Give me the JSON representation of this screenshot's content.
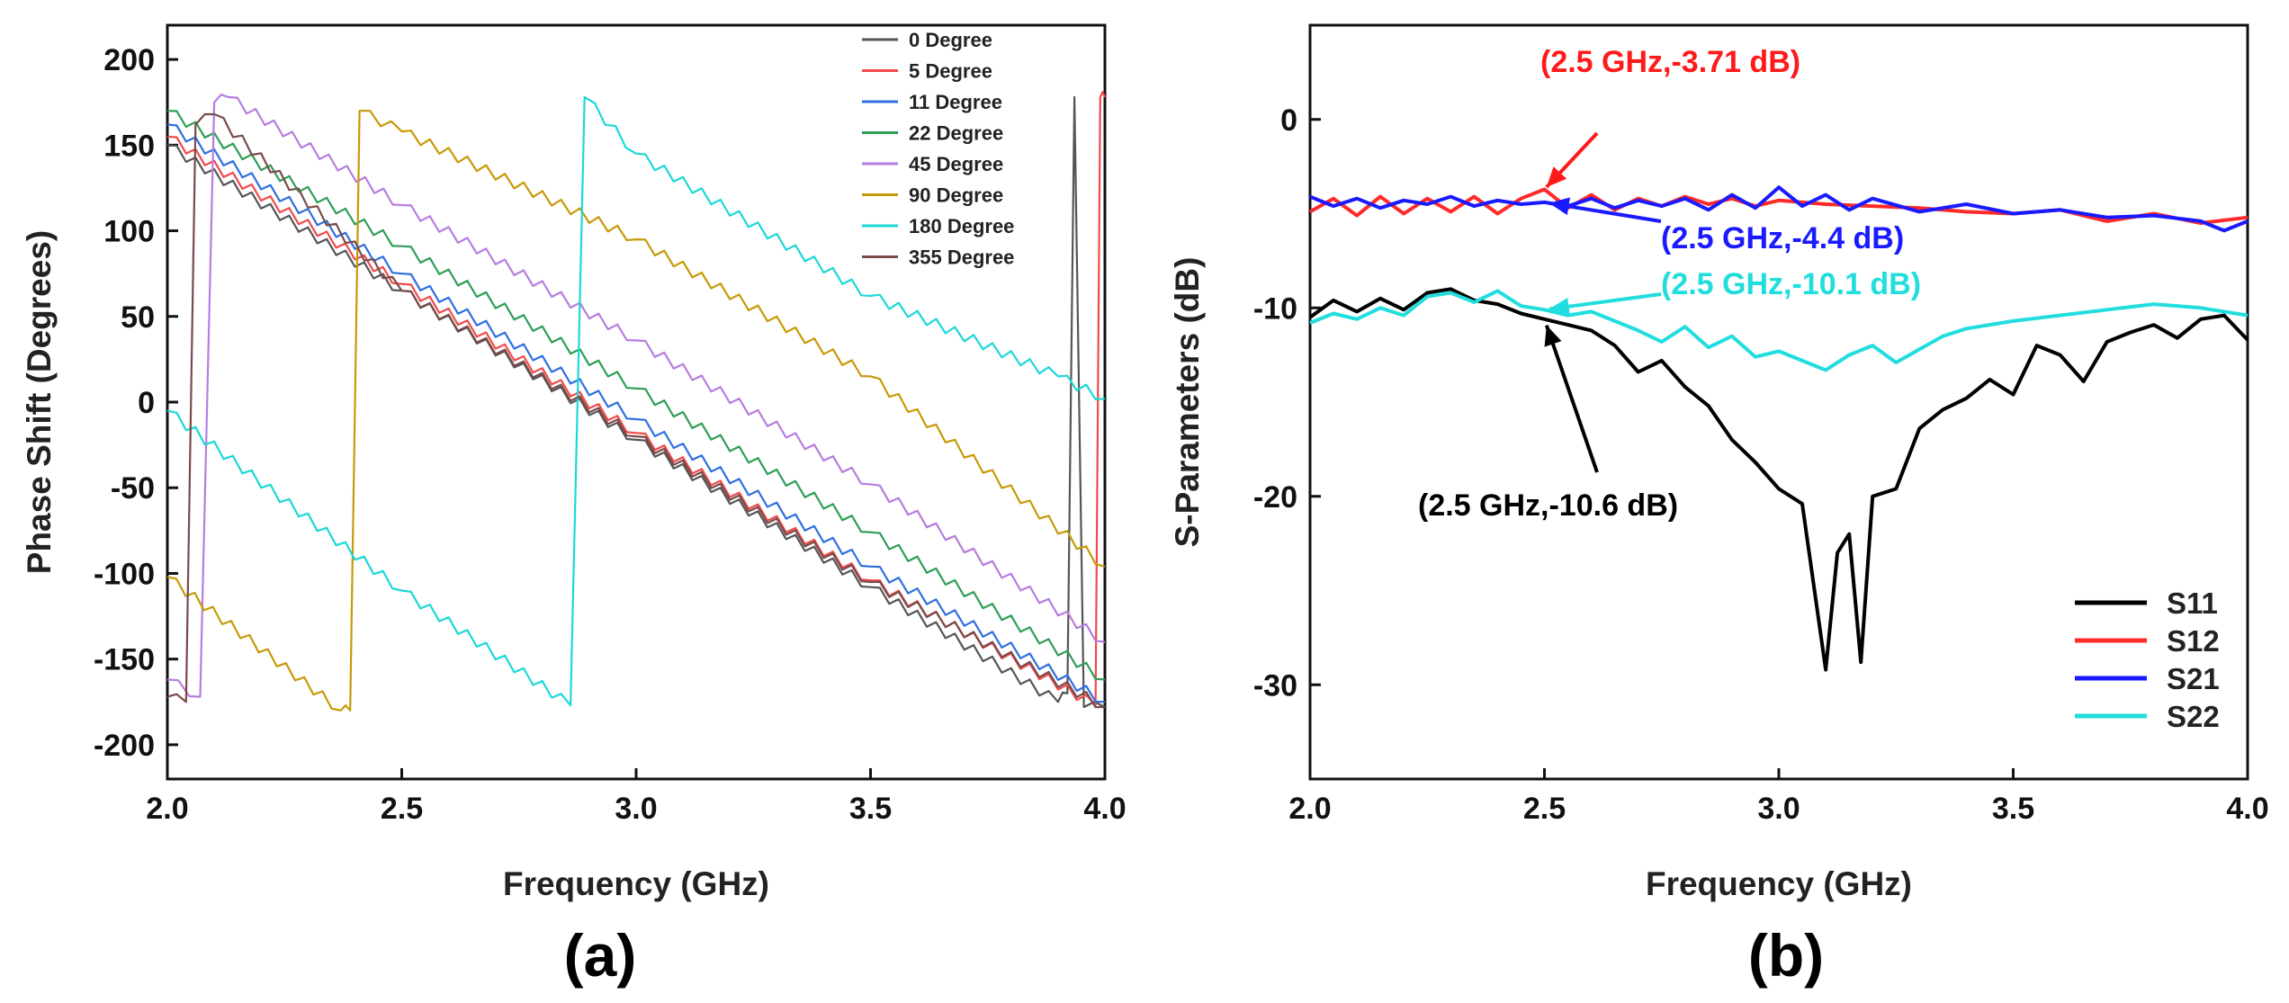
{
  "chart_data": [
    {
      "type": "line",
      "panel_label": "(a)",
      "xlabel": "Frequency (GHz)",
      "ylabel": "Phase Shift (Degrees)",
      "xlim": [
        2.0,
        4.0
      ],
      "ylim": [
        -220,
        220
      ],
      "xticks": [
        "2.0",
        "2.5",
        "3.0",
        "3.5",
        "4.0"
      ],
      "yticks": [
        "200",
        "150",
        "100",
        "50",
        "0",
        "-50",
        "-100",
        "-150",
        "-200"
      ],
      "legend_position": "top-right",
      "grid": false,
      "series": [
        {
          "name": "0 Degree",
          "color": "#555555",
          "points": [
            [
              2.0,
              150
            ],
            [
              2.5,
              65
            ],
            [
              3.0,
              -22
            ],
            [
              3.5,
              -108
            ],
            [
              3.9,
              -175
            ],
            [
              3.92,
              -170
            ],
            [
              3.935,
              178
            ],
            [
              3.955,
              -178
            ],
            [
              4.0,
              -178
            ]
          ]
        },
        {
          "name": "5 Degree",
          "color": "#f04a4a",
          "points": [
            [
              2.0,
              155
            ],
            [
              2.5,
              69
            ],
            [
              3.0,
              -18
            ],
            [
              3.5,
              -104
            ],
            [
              3.98,
              -177
            ],
            [
              3.99,
              178
            ],
            [
              4.0,
              178
            ]
          ]
        },
        {
          "name": "11 Degree",
          "color": "#2f6fe0",
          "points": [
            [
              2.0,
              162
            ],
            [
              2.5,
              75
            ],
            [
              3.0,
              -10
            ],
            [
              3.5,
              -96
            ],
            [
              4.0,
              -175
            ]
          ]
        },
        {
          "name": "22 Degree",
          "color": "#2e9e56",
          "points": [
            [
              2.0,
              170
            ],
            [
              2.5,
              91
            ],
            [
              3.0,
              8
            ],
            [
              3.5,
              -76
            ],
            [
              4.0,
              -162
            ]
          ]
        },
        {
          "name": "45 Degree",
          "color": "#b77de0",
          "points": [
            [
              2.0,
              -162
            ],
            [
              2.07,
              -172
            ],
            [
              2.1,
              175
            ],
            [
              2.13,
              178
            ],
            [
              2.5,
              115
            ],
            [
              3.0,
              36
            ],
            [
              3.5,
              -48
            ],
            [
              4.0,
              -140
            ]
          ]
        },
        {
          "name": "90 Degree",
          "color": "#c79a08",
          "points": [
            [
              2.0,
              -102
            ],
            [
              2.37,
              -180
            ],
            [
              2.39,
              -180
            ],
            [
              2.41,
              170
            ],
            [
              2.5,
              158
            ],
            [
              3.0,
              95
            ],
            [
              3.5,
              15
            ],
            [
              4.0,
              -96
            ]
          ]
        },
        {
          "name": "180 Degree",
          "color": "#1ed8d8",
          "points": [
            [
              2.0,
              -5
            ],
            [
              2.5,
              -110
            ],
            [
              2.86,
              -177
            ],
            [
              2.89,
              178
            ],
            [
              3.0,
              145
            ],
            [
              3.5,
              62
            ],
            [
              3.9,
              15
            ],
            [
              4.0,
              2
            ]
          ]
        },
        {
          "name": "355 Degree",
          "color": "#7a4a4a",
          "points": [
            [
              2.0,
              -172
            ],
            [
              2.04,
              -175
            ],
            [
              2.06,
              162
            ],
            [
              2.1,
              168
            ],
            [
              2.5,
              65
            ],
            [
              3.0,
              -20
            ],
            [
              3.5,
              -105
            ],
            [
              4.0,
              -178
            ]
          ]
        }
      ]
    },
    {
      "type": "line",
      "panel_label": "(b)",
      "xlabel": "Frequency (GHz)",
      "ylabel": "S-Parameters (dB)",
      "xlim": [
        2.0,
        4.0
      ],
      "ylim": [
        -35,
        5
      ],
      "xticks": [
        "2.0",
        "2.5",
        "3.0",
        "3.5",
        "4.0"
      ],
      "yticks": [
        "0",
        "-10",
        "-20",
        "-30"
      ],
      "legend_position": "bottom-right",
      "grid": false,
      "series": [
        {
          "name": "S11",
          "color": "#000000",
          "x": [
            2.0,
            2.05,
            2.1,
            2.15,
            2.2,
            2.25,
            2.3,
            2.35,
            2.4,
            2.45,
            2.5,
            2.55,
            2.6,
            2.65,
            2.7,
            2.75,
            2.8,
            2.85,
            2.9,
            2.95,
            3.0,
            3.05,
            3.1,
            3.125,
            3.15,
            3.175,
            3.2,
            3.25,
            3.3,
            3.35,
            3.4,
            3.45,
            3.5,
            3.55,
            3.6,
            3.65,
            3.7,
            3.75,
            3.8,
            3.85,
            3.9,
            3.95,
            4.0
          ],
          "values": [
            -10.5,
            -9.6,
            -10.2,
            -9.5,
            -10.1,
            -9.2,
            -9.0,
            -9.6,
            -9.8,
            -10.3,
            -10.6,
            -10.9,
            -11.2,
            -12.0,
            -13.4,
            -12.8,
            -14.2,
            -15.2,
            -17.0,
            -18.2,
            -19.6,
            -20.4,
            -29.2,
            -23.0,
            -22.0,
            -28.8,
            -20.0,
            -19.6,
            -16.4,
            -15.4,
            -14.8,
            -13.8,
            -14.6,
            -12.0,
            -12.5,
            -13.9,
            -11.8,
            -11.3,
            -10.9,
            -11.6,
            -10.6,
            -10.4,
            -11.7
          ]
        },
        {
          "name": "S12",
          "color": "#ff2a2a",
          "x": [
            2.0,
            2.05,
            2.1,
            2.15,
            2.2,
            2.25,
            2.3,
            2.35,
            2.4,
            2.45,
            2.5,
            2.55,
            2.6,
            2.65,
            2.7,
            2.75,
            2.8,
            2.85,
            2.9,
            2.95,
            3.0,
            3.1,
            3.2,
            3.3,
            3.4,
            3.5,
            3.6,
            3.7,
            3.8,
            3.9,
            4.0
          ],
          "values": [
            -4.9,
            -4.2,
            -5.1,
            -4.1,
            -5.0,
            -4.2,
            -4.9,
            -4.1,
            -5.0,
            -4.2,
            -3.71,
            -4.7,
            -4.0,
            -4.8,
            -4.2,
            -4.6,
            -4.1,
            -4.5,
            -4.2,
            -4.6,
            -4.3,
            -4.5,
            -4.6,
            -4.7,
            -4.9,
            -5.0,
            -4.8,
            -5.4,
            -5.0,
            -5.5,
            -5.2
          ]
        },
        {
          "name": "S21",
          "color": "#1a1aff",
          "x": [
            2.0,
            2.05,
            2.1,
            2.15,
            2.2,
            2.25,
            2.3,
            2.35,
            2.4,
            2.45,
            2.5,
            2.55,
            2.6,
            2.65,
            2.7,
            2.75,
            2.8,
            2.85,
            2.9,
            2.95,
            3.0,
            3.05,
            3.1,
            3.15,
            3.2,
            3.3,
            3.4,
            3.5,
            3.6,
            3.7,
            3.8,
            3.9,
            3.95,
            4.0
          ],
          "values": [
            -4.1,
            -4.6,
            -4.2,
            -4.7,
            -4.3,
            -4.5,
            -4.1,
            -4.6,
            -4.3,
            -4.5,
            -4.4,
            -4.6,
            -4.2,
            -4.7,
            -4.3,
            -4.6,
            -4.2,
            -4.8,
            -4.0,
            -4.7,
            -3.6,
            -4.6,
            -4.0,
            -4.8,
            -4.2,
            -4.9,
            -4.5,
            -5.0,
            -4.8,
            -5.2,
            -5.1,
            -5.4,
            -5.9,
            -5.4
          ]
        },
        {
          "name": "S22",
          "color": "#22dddd",
          "x": [
            2.0,
            2.05,
            2.1,
            2.15,
            2.2,
            2.25,
            2.3,
            2.35,
            2.4,
            2.45,
            2.5,
            2.55,
            2.6,
            2.65,
            2.7,
            2.75,
            2.8,
            2.85,
            2.9,
            2.95,
            3.0,
            3.05,
            3.1,
            3.15,
            3.2,
            3.25,
            3.3,
            3.35,
            3.4,
            3.5,
            3.6,
            3.7,
            3.8,
            3.9,
            4.0
          ],
          "values": [
            -10.8,
            -10.3,
            -10.6,
            -10.0,
            -10.4,
            -9.4,
            -9.2,
            -9.7,
            -9.1,
            -9.9,
            -10.1,
            -10.4,
            -10.2,
            -10.7,
            -11.2,
            -11.8,
            -11.0,
            -12.1,
            -11.5,
            -12.6,
            -12.3,
            -12.8,
            -13.3,
            -12.5,
            -12.0,
            -12.9,
            -12.2,
            -11.5,
            -11.1,
            -10.7,
            -10.4,
            -10.1,
            -9.8,
            -10.0,
            -10.4
          ]
        }
      ],
      "annotations": [
        {
          "text": "(2.5 GHz,-3.71 dB)",
          "color": "#ff1a1a",
          "target": [
            2.5,
            -3.71
          ]
        },
        {
          "text": "(2.5 GHz,-4.4 dB)",
          "color": "#1a1aff",
          "target": [
            2.5,
            -4.4
          ]
        },
        {
          "text": "(2.5 GHz,-10.1 dB)",
          "color": "#22dddd",
          "target": [
            2.5,
            -10.1
          ]
        },
        {
          "text": "(2.5 GHz,-10.6 dB)",
          "color": "#000000",
          "target": [
            2.5,
            -10.6
          ]
        }
      ]
    }
  ]
}
